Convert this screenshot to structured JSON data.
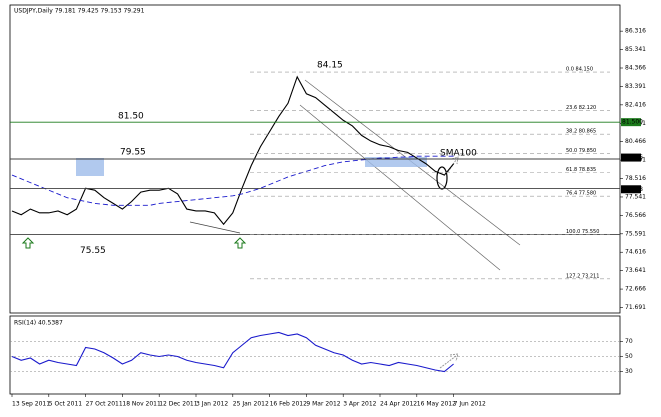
{
  "chart_data": [
    {
      "type": "line",
      "title": "USDJPY,Daily 79.181 79.425 79.153 79.291",
      "categories": [
        "13 Sep 2011",
        null,
        null,
        null,
        "5 Oct 2011",
        null,
        null,
        null,
        "27 Oct 2011",
        null,
        null,
        null,
        "18 Nov 2011",
        null,
        null,
        null,
        "12 Dec 2011",
        null,
        null,
        null,
        "3 Jan 2012",
        null,
        null,
        null,
        "25 Jan 2012",
        null,
        null,
        null,
        "16 Feb 2012",
        null,
        null,
        null,
        "9 Mar 2012",
        null,
        null,
        null,
        "3 Apr 2012",
        null,
        null,
        null,
        "24 Apr 2012",
        null,
        null,
        null,
        "16 May 2012",
        null,
        null,
        null,
        "7 Jun 2012"
      ],
      "series": [
        {
          "name": "USDJPY",
          "color": "#000000",
          "values": [
            76.8,
            76.6,
            76.9,
            76.7,
            76.7,
            76.8,
            76.6,
            76.9,
            78.0,
            77.9,
            77.5,
            77.2,
            76.9,
            77.3,
            77.8,
            77.9,
            77.9,
            78.0,
            77.7,
            76.9,
            76.8,
            76.8,
            76.7,
            76.1,
            76.7,
            78.0,
            79.2,
            80.2,
            81.0,
            81.8,
            82.5,
            83.9,
            83.0,
            82.8,
            82.4,
            82.0,
            81.6,
            81.3,
            80.8,
            80.5,
            80.3,
            80.2,
            80.0,
            79.9,
            79.6,
            79.3,
            78.9,
            78.7,
            79.3
          ]
        },
        {
          "name": "SMA100",
          "color": "#1a1acc",
          "values": [
            78.7,
            78.5,
            78.3,
            78.1,
            77.9,
            77.7,
            77.5,
            77.4,
            77.3,
            77.2,
            77.15,
            77.1,
            77.1,
            77.1,
            77.1,
            77.1,
            77.2,
            77.25,
            77.3,
            77.35,
            77.4,
            77.45,
            77.5,
            77.55,
            77.6,
            77.7,
            77.85,
            78.0,
            78.2,
            78.4,
            78.6,
            78.75,
            78.9,
            79.05,
            79.2,
            79.3,
            79.4,
            79.45,
            79.5,
            79.55,
            79.6,
            79.6,
            79.65,
            79.65,
            79.7,
            79.7,
            79.7,
            79.7,
            79.7
          ]
        }
      ],
      "ylim": [
        71.4,
        87.7
      ],
      "yticks": [
        71.691,
        72.666,
        73.641,
        74.616,
        75.591,
        76.566,
        77.541,
        78.516,
        79.491,
        80.466,
        81.441,
        82.416,
        83.391,
        84.366,
        85.341,
        86.316
      ],
      "hlines": [
        {
          "value": 81.5,
          "color": "#1b7a1b"
        },
        {
          "value": 79.55,
          "color": "#404040"
        },
        {
          "value": 77.99,
          "color": "#404040"
        },
        {
          "value": 75.55,
          "color": "#404040"
        }
      ],
      "fib_levels": [
        {
          "value": 84.15,
          "label": "0.0 84.150"
        },
        {
          "value": 82.12,
          "label": "23.6 82.120"
        },
        {
          "value": 80.865,
          "label": "38.2 80.865"
        },
        {
          "value": 79.85,
          "label": "50.0 79.850"
        },
        {
          "value": 78.835,
          "label": "61.8 78.835"
        },
        {
          "value": 77.58,
          "label": "76.4 77.580"
        },
        {
          "value": 75.55,
          "label": "100.0 75.550"
        },
        {
          "value": 73.211,
          "label": "127.2 73.211"
        }
      ],
      "price_labels": [
        {
          "value": 81.5,
          "label": "81.500",
          "color": "#1b7a1b"
        },
        {
          "value": 79.626,
          "label": "79.626",
          "color": "#000000"
        },
        {
          "value": 77.948,
          "label": "77.948",
          "color": "#000000"
        }
      ],
      "annotations": [
        {
          "value": 84.15,
          "label": "84.15"
        },
        {
          "value": 81.5,
          "label": "81.50"
        },
        {
          "value": 79.55,
          "label": "79.55"
        },
        {
          "value": 75.55,
          "label": "75.55"
        },
        {
          "label": "SMA100"
        }
      ]
    },
    {
      "type": "line",
      "title": "RSI(14) 40.5387",
      "series": [
        {
          "name": "RSI(14)",
          "color": "#1a1acc",
          "values": [
            50,
            45,
            48,
            40,
            45,
            42,
            40,
            38,
            62,
            60,
            55,
            48,
            40,
            45,
            55,
            52,
            50,
            52,
            50,
            45,
            42,
            40,
            38,
            35,
            55,
            65,
            75,
            78,
            80,
            82,
            78,
            80,
            75,
            65,
            60,
            55,
            52,
            45,
            40,
            42,
            40,
            38,
            42,
            40,
            38,
            35,
            32,
            30,
            40
          ]
        }
      ],
      "ylim": [
        0,
        100
      ],
      "yticks": [
        30,
        50,
        70
      ]
    }
  ]
}
